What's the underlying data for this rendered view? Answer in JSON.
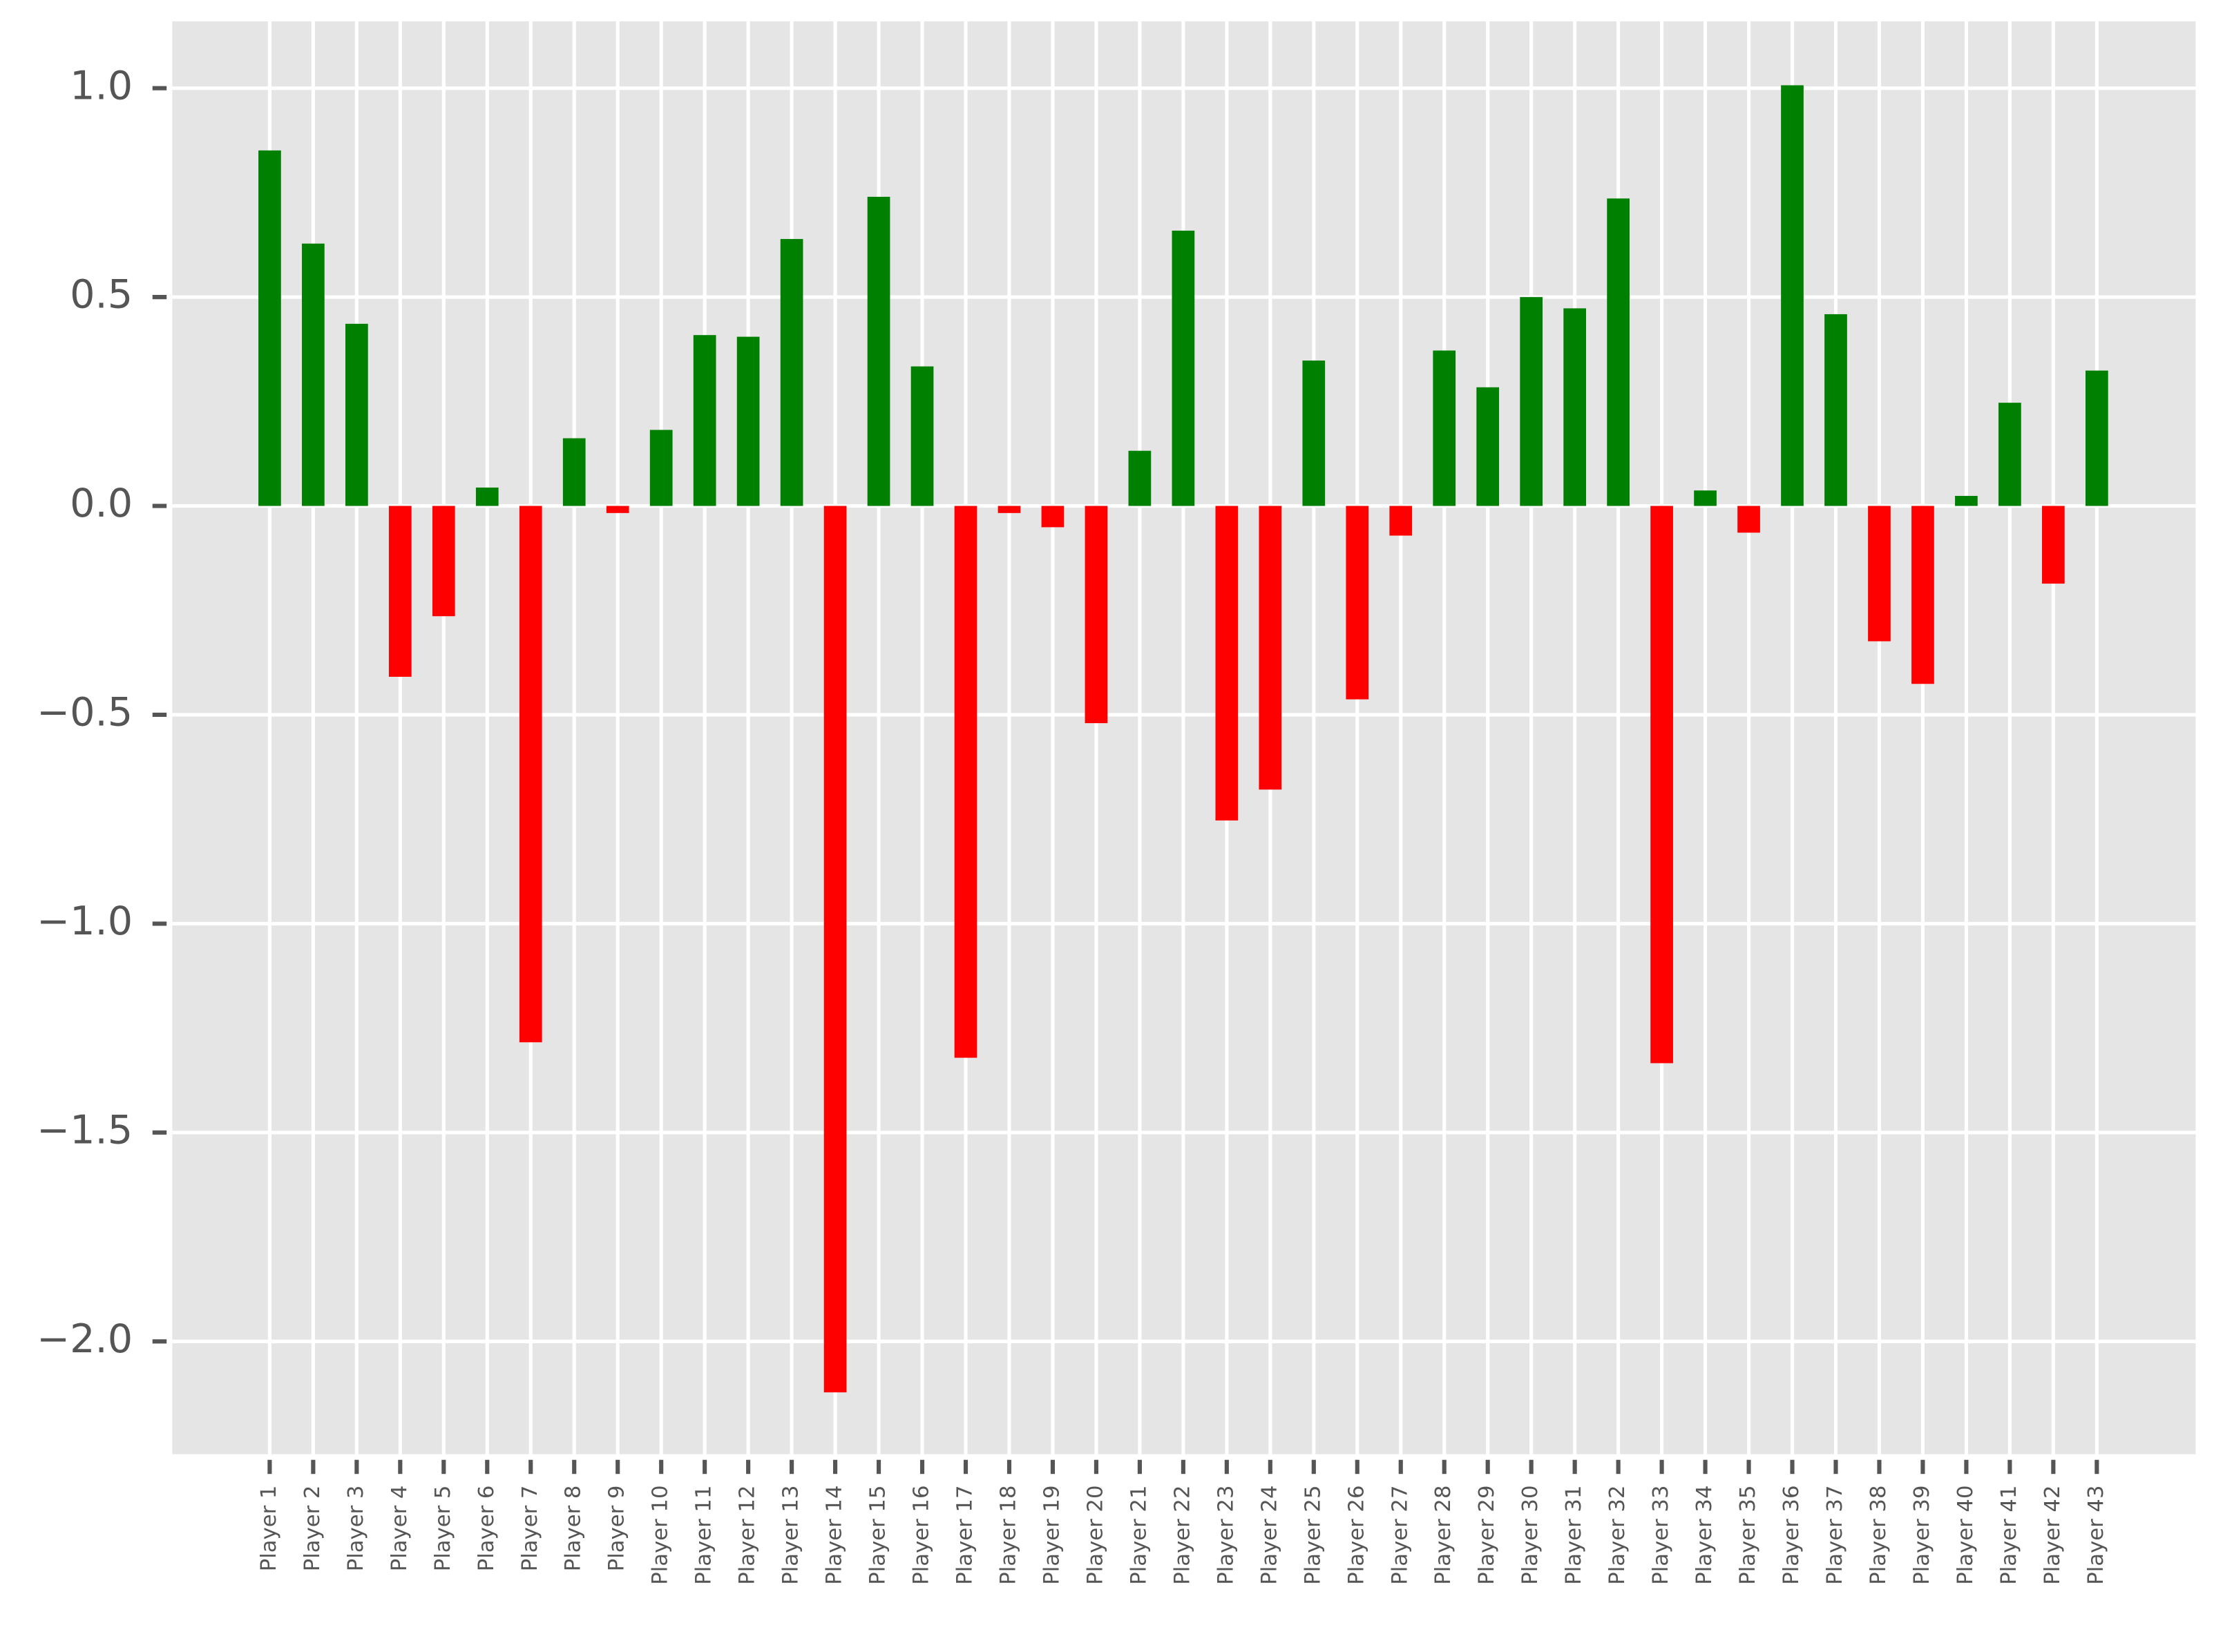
{
  "chart_data": {
    "type": "bar",
    "categories": [
      "Player 1",
      "Player 2",
      "Player 3",
      "Player 4",
      "Player 5",
      "Player 6",
      "Player 7",
      "Player 8",
      "Player 9",
      "Player 10",
      "Player 11",
      "Player 12",
      "Player 13",
      "Player 14",
      "Player 15",
      "Player 16",
      "Player 17",
      "Player 18",
      "Player 19",
      "Player 20",
      "Player 21",
      "Player 22",
      "Player 23",
      "Player 24",
      "Player 25",
      "Player 26",
      "Player 27",
      "Player 28",
      "Player 29",
      "Player 30",
      "Player 31",
      "Player 32",
      "Player 33",
      "Player 34",
      "Player 35",
      "Player 36",
      "Player 37",
      "Player 38",
      "Player 39",
      "Player 40",
      "Player 41",
      "Player 42",
      "Player 43"
    ],
    "values": [
      0.851,
      0.628,
      0.436,
      -0.409,
      -0.264,
      0.044,
      -1.284,
      0.162,
      -0.017,
      0.182,
      0.409,
      0.405,
      0.639,
      -2.122,
      0.74,
      0.334,
      -1.321,
      -0.017,
      -0.051,
      -0.52,
      0.132,
      0.659,
      -0.753,
      -0.679,
      0.348,
      -0.463,
      -0.071,
      0.372,
      0.284,
      0.5,
      0.473,
      0.736,
      -1.334,
      0.037,
      -0.064,
      1.007,
      0.459,
      -0.324,
      -0.426,
      0.024,
      0.247,
      -0.186,
      0.324
    ],
    "positive_color": "#008000",
    "negative_color": "#ff0000",
    "ylim": [
      -2.27,
      1.16
    ],
    "yticks": [
      {
        "value": -2.0,
        "label": "−2.0"
      },
      {
        "value": -1.5,
        "label": "−1.5"
      },
      {
        "value": -1.0,
        "label": "−1.0"
      },
      {
        "value": -0.5,
        "label": "−0.5"
      },
      {
        "value": 0.0,
        "label": "0.0"
      },
      0.5,
      {
        "value": 1.0,
        "label": "1.0"
      }
    ],
    "grid": true
  }
}
